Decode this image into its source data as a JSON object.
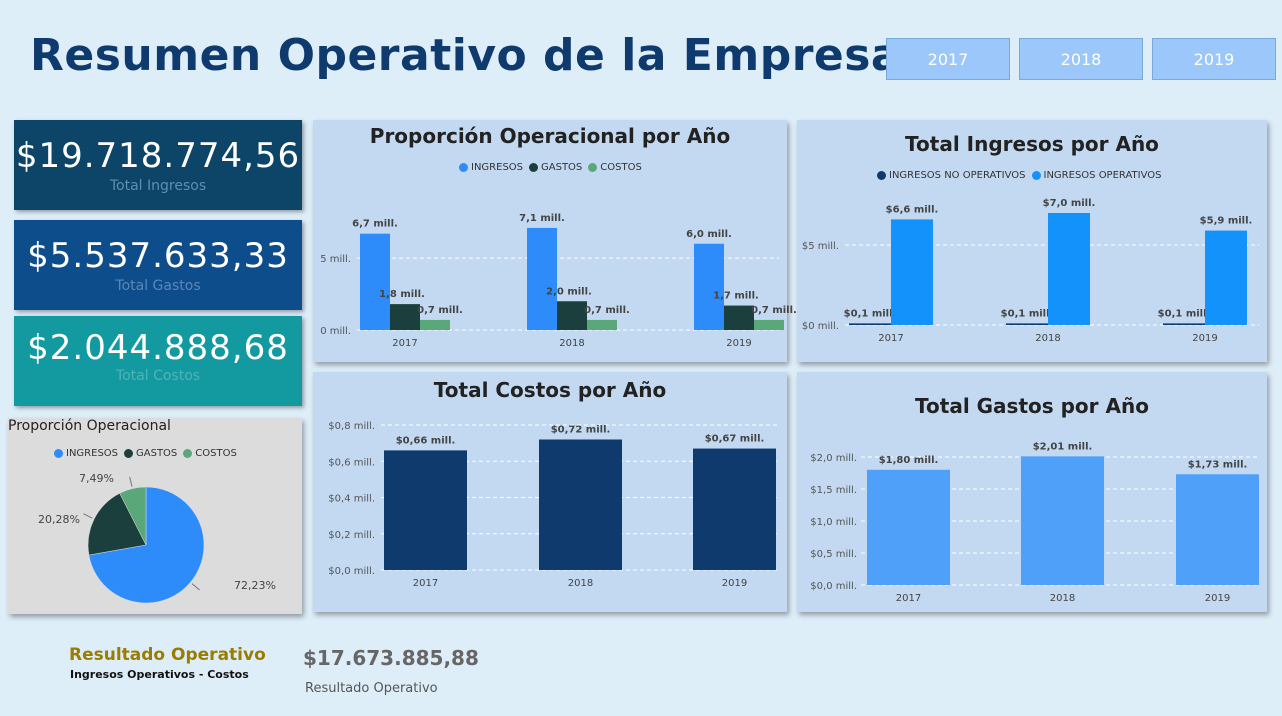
{
  "header": {
    "title": "Resumen Operativo de la Empresa"
  },
  "year_filters": [
    "2017",
    "2018",
    "2019"
  ],
  "kpis": [
    {
      "value": "$19.718.774,56",
      "label": "Total Ingresos",
      "bg": "#0d4568",
      "label_color": "#5e8fb0"
    },
    {
      "value": "$5.537.633,33",
      "label": "Total Gastos",
      "bg": "#0e4d8c",
      "label_color": "#5a87b8"
    },
    {
      "value": "$2.044.888,68",
      "label": "Total Costos",
      "bg": "#139aa0",
      "label_color": "#4fb3b8"
    }
  ],
  "result": {
    "title": "Resultado Operativo",
    "subtitle": "Ingresos Operativos - Costos",
    "value": "$17.673.885,88",
    "value_label": "Resultado Operativo"
  },
  "colors": {
    "ingresos": "#2d8cf9",
    "gastos": "#1b3f3c",
    "costos": "#5aa879",
    "ing_no_op": "#0f3a6e",
    "ing_op": "#1492fb",
    "costos_bar": "#0f3a6e",
    "gastos_bar": "#4ea0f8"
  },
  "chart_data": [
    {
      "id": "proporcion_anual",
      "type": "bar",
      "title": "Proporción Operacional por Año",
      "categories": [
        "2017",
        "2018",
        "2019"
      ],
      "series": [
        {
          "name": "INGRESOS",
          "values": [
            6.7,
            7.1,
            6.0
          ],
          "labels": [
            "6,7 mill.",
            "7,1 mill.",
            "6,0 mill."
          ]
        },
        {
          "name": "GASTOS",
          "values": [
            1.8,
            2.0,
            1.7
          ],
          "labels": [
            "1,8 mill.",
            "2,0 mill.",
            "1,7 mill."
          ]
        },
        {
          "name": "COSTOS",
          "values": [
            0.7,
            0.7,
            0.7
          ],
          "labels": [
            "0,7 mill.",
            "0,7 mill.",
            "0,7 mill."
          ]
        }
      ],
      "yticks": [
        "0 mill.",
        "5 mill."
      ],
      "ytick_values": [
        0,
        5
      ],
      "ylim": [
        0,
        8
      ]
    },
    {
      "id": "ingresos_anual",
      "type": "bar",
      "title": "Total Ingresos por Año",
      "categories": [
        "2017",
        "2018",
        "2019"
      ],
      "series": [
        {
          "name": "INGRESOS NO OPERATIVOS",
          "values": [
            0.1,
            0.1,
            0.1
          ],
          "labels": [
            "$0,1 mill.",
            "$0,1 mill.",
            "$0,1 mill."
          ]
        },
        {
          "name": "INGRESOS OPERATIVOS",
          "values": [
            6.6,
            7.0,
            5.9
          ],
          "labels": [
            "$6,6 mill.",
            "$7,0 mill.",
            "$5,9 mill."
          ]
        }
      ],
      "yticks": [
        "$0 mill.",
        "$5 mill."
      ],
      "ytick_values": [
        0,
        5
      ],
      "ylim": [
        0,
        7.5
      ]
    },
    {
      "id": "costos_anual",
      "type": "bar",
      "title": "Total Costos por Año",
      "categories": [
        "2017",
        "2018",
        "2019"
      ],
      "series": [
        {
          "name": "Costos",
          "values": [
            0.66,
            0.72,
            0.67
          ],
          "labels": [
            "$0,66 mill.",
            "$0,72 mill.",
            "$0,67 mill."
          ]
        }
      ],
      "yticks": [
        "$0,0 mill.",
        "$0,2 mill.",
        "$0,4 mill.",
        "$0,6 mill.",
        "$0,8 mill."
      ],
      "ytick_values": [
        0,
        0.2,
        0.4,
        0.6,
        0.8
      ],
      "ylim": [
        0,
        0.8
      ]
    },
    {
      "id": "gastos_anual",
      "type": "bar",
      "title": "Total Gastos por Año",
      "categories": [
        "2017",
        "2018",
        "2019"
      ],
      "series": [
        {
          "name": "Gastos",
          "values": [
            1.8,
            2.01,
            1.73
          ],
          "labels": [
            "$1,80 mill.",
            "$2,01 mill.",
            "$1,73 mill."
          ]
        }
      ],
      "yticks": [
        "$0,0 mill.",
        "$0,5 mill.",
        "$1,0 mill.",
        "$1,5 mill.",
        "$2,0 mill."
      ],
      "ytick_values": [
        0,
        0.5,
        1.0,
        1.5,
        2.0
      ],
      "ylim": [
        0,
        2.0
      ]
    },
    {
      "id": "proporcion_pie",
      "type": "pie",
      "title": "Proporción Operacional",
      "labels": [
        "INGRESOS",
        "GASTOS",
        "COSTOS"
      ],
      "values": [
        72.23,
        20.28,
        7.49
      ],
      "value_labels": [
        "72,23%",
        "20,28%",
        "7,49%"
      ]
    }
  ]
}
